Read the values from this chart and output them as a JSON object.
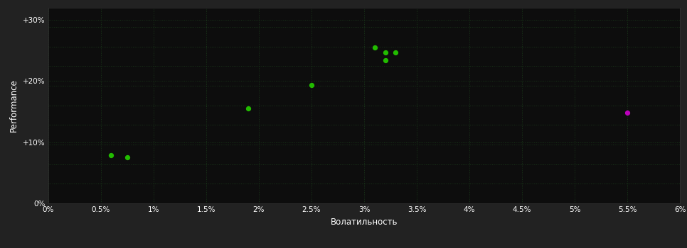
{
  "background_color": "#222222",
  "plot_bg_color": "#0d0d0d",
  "grid_color": "#1a3a1a",
  "xlabel": "Волатильность",
  "ylabel": "Performance",
  "xlim": [
    0.0,
    0.06
  ],
  "ylim": [
    0.0,
    0.32
  ],
  "xtick_vals": [
    0.0,
    0.005,
    0.01,
    0.015,
    0.02,
    0.025,
    0.03,
    0.035,
    0.04,
    0.045,
    0.05,
    0.055,
    0.06
  ],
  "xtick_labels": [
    "0%",
    "0.5%",
    "1%",
    "1.5%",
    "2%",
    "2.5%",
    "3%",
    "3.5%",
    "4%",
    "4.5%",
    "5%",
    "5.5%",
    "6%"
  ],
  "ytick_vals": [
    0.0,
    0.1,
    0.2,
    0.3
  ],
  "ytick_labels": [
    "0%",
    "+10%",
    "+20%",
    "+30%"
  ],
  "ytick_minor_vals": [
    0.032,
    0.064,
    0.096,
    0.128,
    0.16,
    0.192,
    0.224,
    0.256,
    0.288
  ],
  "green_points": [
    [
      0.006,
      0.079
    ],
    [
      0.0075,
      0.075
    ],
    [
      0.019,
      0.155
    ],
    [
      0.025,
      0.193
    ],
    [
      0.031,
      0.255
    ],
    [
      0.032,
      0.246
    ],
    [
      0.033,
      0.246
    ],
    [
      0.032,
      0.234
    ]
  ],
  "magenta_points": [
    [
      0.055,
      0.148
    ]
  ],
  "green_color": "#22bb00",
  "magenta_color": "#bb00bb",
  "point_size": 18
}
